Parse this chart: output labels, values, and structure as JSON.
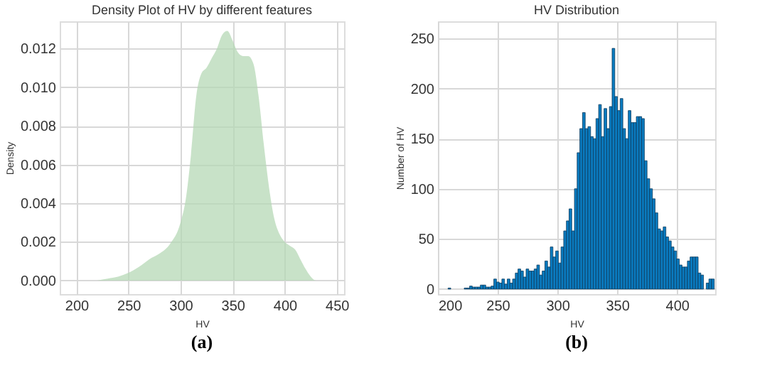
{
  "chart_data": [
    {
      "type": "area",
      "title": "Density Plot of HV by different features",
      "xlabel": "HV",
      "ylabel": "Density",
      "annotations": [
        "(a)"
      ],
      "x": [
        220,
        230,
        240,
        250,
        260,
        265,
        270,
        280,
        290,
        300,
        305,
        310,
        315,
        320,
        325,
        330,
        335,
        340,
        345,
        350,
        355,
        360,
        365,
        370,
        375,
        380,
        385,
        390,
        395,
        400,
        405,
        410,
        415,
        420,
        425,
        430,
        435
      ],
      "series": [
        {
          "color": "#b5d8b5",
          "values": [
            0,
            0.0001,
            0.0002,
            0.0004,
            0.0007,
            0.0009,
            0.0011,
            0.0014,
            0.0019,
            0.003,
            0.0042,
            0.0065,
            0.0095,
            0.0107,
            0.011,
            0.0115,
            0.012,
            0.0127,
            0.0129,
            0.0124,
            0.0118,
            0.0116,
            0.0116,
            0.0112,
            0.0095,
            0.007,
            0.0048,
            0.0032,
            0.0024,
            0.002,
            0.0018,
            0.0016,
            0.0011,
            0.0006,
            0.0002,
            0,
            0
          ]
        }
      ],
      "xlim": [
        184,
        457
      ],
      "xticks": [
        200,
        250,
        300,
        350,
        400,
        450
      ],
      "ylim": [
        -0.0007,
        0.0134
      ],
      "yticks": [
        {
          "value": 0,
          "label": "0.000"
        },
        0.002,
        0.004,
        0.006,
        0.008,
        {
          "value": 0.01,
          "label": "0.010"
        },
        0.012
      ],
      "grid": true
    },
    {
      "type": "histogram",
      "title": "HV Distribution",
      "xlabel": "HV",
      "ylabel": "Number of HV",
      "annotations": [
        "(b)"
      ],
      "color": "#0a7bc0",
      "bins": [
        204,
        206.25,
        208.5,
        210.75,
        213,
        215.25,
        217.5,
        219.75,
        222,
        224.25,
        226.5,
        228.75,
        231,
        233.25,
        235.5,
        237.75,
        240,
        242.25,
        244.5,
        246.75,
        249,
        251.25,
        253.5,
        255.75,
        258,
        260.25,
        262.5,
        264.75,
        267,
        269.25,
        271.5,
        273.75,
        276,
        278.25,
        280.5,
        282.75,
        285,
        287.25,
        289.5,
        291.75,
        294,
        296.25,
        298.5,
        300.75,
        303,
        305.25,
        307.5,
        309.75,
        312,
        314.25,
        316.5,
        318.75,
        321,
        323.25,
        325.5,
        327.75,
        330,
        332.25,
        334.5,
        336.75,
        339,
        341.25,
        343.5,
        345.75,
        348,
        350.25,
        352.5,
        354.75,
        357,
        359.25,
        361.5,
        363.75,
        366,
        368.25,
        370.5,
        372.75,
        375,
        377.25,
        379.5,
        381.75,
        384,
        386.25,
        388.5,
        390.75,
        393,
        395.25,
        397.5,
        399.75,
        402,
        404.25,
        406.5,
        408.75,
        411,
        413.25,
        415.5,
        417.75,
        420,
        422.25,
        424.5,
        426.75,
        429,
        431.25
      ],
      "values": [
        0,
        0,
        1,
        0,
        0,
        0,
        0,
        0,
        1,
        1,
        3,
        2,
        2,
        2,
        4,
        4,
        2,
        2,
        3,
        10,
        7,
        6,
        10,
        5,
        10,
        6,
        10,
        16,
        20,
        18,
        12,
        20,
        18,
        18,
        20,
        24,
        14,
        18,
        28,
        22,
        42,
        32,
        38,
        26,
        42,
        58,
        68,
        80,
        58,
        100,
        136,
        160,
        176,
        160,
        162,
        152,
        150,
        170,
        184,
        152,
        180,
        160,
        182,
        240,
        192,
        178,
        190,
        160,
        150,
        178,
        166,
        166,
        172,
        172,
        170,
        128,
        110,
        100,
        90,
        76,
        60,
        58,
        62,
        52,
        48,
        42,
        38,
        30,
        24,
        22,
        22,
        28,
        32,
        32,
        32,
        16,
        14,
        0,
        6,
        10,
        10
      ],
      "xlim": [
        200,
        432
      ],
      "xticks": [
        200,
        250,
        300,
        350,
        400
      ],
      "ylim": [
        -5,
        267
      ],
      "yticks": [
        0,
        50,
        100,
        150,
        200,
        250
      ],
      "grid": true
    }
  ]
}
